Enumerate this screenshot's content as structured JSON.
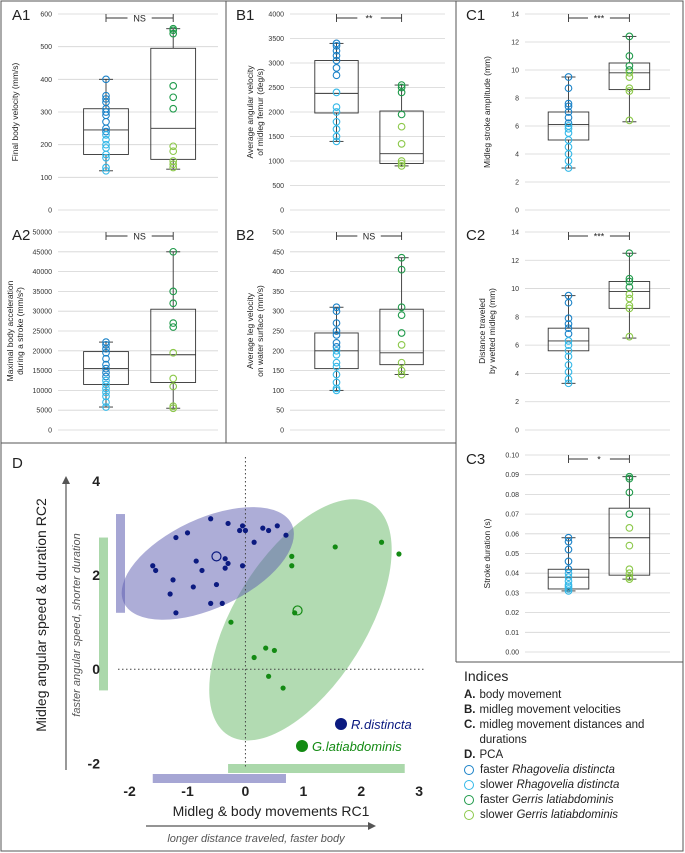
{
  "colors": {
    "faster_rhago": "#1a82c8",
    "slower_rhago": "#33b8e8",
    "faster_gerris": "#1f9a4a",
    "slower_gerris": "#8cc84a",
    "rhago_pca": "#0b1a80",
    "gerris_pca": "#138a13",
    "rhago_ellipse": "#5c5cb0",
    "gerris_ellipse": "#66b866"
  },
  "indices": {
    "title": "Indices",
    "items": [
      {
        "key": "A.",
        "text": "body movement"
      },
      {
        "key": "B.",
        "text": "midleg movement velocities"
      },
      {
        "key": "C.",
        "text": "midleg movement distances and durations"
      },
      {
        "key": "D.",
        "text": "PCA"
      }
    ],
    "legend": [
      {
        "prefix": "faster ",
        "species": "Rhagovelia distincta",
        "color": "#1a82c8"
      },
      {
        "prefix": "slower ",
        "species": "Rhagovelia distincta",
        "color": "#33b8e8"
      },
      {
        "prefix": "faster ",
        "species": "Gerris latiabdominis",
        "color": "#1f9a4a"
      },
      {
        "prefix": "slower ",
        "species": "Gerris latiabdominis",
        "color": "#8cc84a"
      }
    ]
  },
  "chart_data": [
    {
      "id": "A1",
      "type": "box",
      "ylabel": [
        "Final body velocity (mm/s)"
      ],
      "ylim": [
        0,
        600
      ],
      "yticks": [
        0,
        100,
        200,
        300,
        400,
        500,
        600
      ],
      "significance": "NS",
      "groups": [
        {
          "name": "Rhagovelia distincta",
          "min": 120,
          "q1": 170,
          "median": 245,
          "q3": 310,
          "max": 400,
          "faster": [
            400,
            350,
            340,
            330,
            310,
            300,
            290,
            270,
            250,
            240
          ],
          "slower": [
            230,
            215,
            200,
            190,
            170,
            160,
            130,
            120
          ]
        },
        {
          "name": "Gerris latiabdominis",
          "min": 125,
          "q1": 155,
          "median": 250,
          "q3": 495,
          "max": 555,
          "faster": [
            555,
            550,
            540,
            380,
            345,
            310
          ],
          "slower": [
            195,
            180,
            150,
            140,
            130
          ]
        }
      ]
    },
    {
      "id": "A2",
      "type": "box",
      "ylabel": [
        "Maximal body acceleration",
        "during a stroke (mm/s²)"
      ],
      "ylim": [
        0,
        50000
      ],
      "yticks": [
        0,
        5000,
        10000,
        15000,
        20000,
        25000,
        30000,
        35000,
        40000,
        45000,
        50000
      ],
      "significance": "NS",
      "groups": [
        {
          "name": "Rhagovelia distincta",
          "min": 5800,
          "q1": 11500,
          "median": 15500,
          "q3": 19800,
          "max": 22200,
          "faster": [
            22200,
            21500,
            20500,
            19500,
            18000,
            16500,
            15500,
            14500,
            13500
          ],
          "slower": [
            12500,
            11500,
            10500,
            9500,
            8500,
            7000,
            5800
          ]
        },
        {
          "name": "Gerris latiabdominis",
          "min": 5500,
          "q1": 12000,
          "median": 19000,
          "q3": 30500,
          "max": 45000,
          "faster": [
            45000,
            35000,
            32000,
            27000,
            26000
          ],
          "slower": [
            19500,
            13000,
            11000,
            6000,
            5500
          ]
        }
      ]
    },
    {
      "id": "B1",
      "type": "box",
      "ylabel": [
        "Average angular velocity",
        "of midleg femur (deg/s)"
      ],
      "ylim": [
        0,
        4000
      ],
      "yticks": [
        0,
        500,
        1000,
        1500,
        2000,
        2500,
        3000,
        3500,
        4000
      ],
      "significance": "**",
      "groups": [
        {
          "name": "Rhagovelia distincta",
          "min": 1400,
          "q1": 1980,
          "median": 2380,
          "q3": 3050,
          "max": 3400,
          "faster": [
            3400,
            3350,
            3250,
            3150,
            3050,
            2900,
            2750
          ],
          "slower": [
            2400,
            2100,
            2000,
            1800,
            1650,
            1500,
            1400
          ]
        },
        {
          "name": "Gerris latiabdominis",
          "min": 900,
          "q1": 950,
          "median": 1150,
          "q3": 2020,
          "max": 2550,
          "faster": [
            2550,
            2500,
            2400,
            1950
          ],
          "slower": [
            1700,
            1350,
            1000,
            950,
            900
          ]
        }
      ]
    },
    {
      "id": "B2",
      "type": "box",
      "ylabel": [
        "Average leg velocity",
        "on water surface (mm/s)"
      ],
      "ylim": [
        0,
        500
      ],
      "yticks": [
        0,
        50,
        100,
        150,
        200,
        250,
        300,
        350,
        400,
        450,
        500
      ],
      "significance": "NS",
      "groups": [
        {
          "name": "Rhagovelia distincta",
          "min": 100,
          "q1": 155,
          "median": 200,
          "q3": 245,
          "max": 310,
          "faster": [
            310,
            300,
            270,
            250,
            240,
            220,
            210
          ],
          "slower": [
            200,
            190,
            170,
            160,
            140,
            120,
            105,
            100
          ]
        },
        {
          "name": "Gerris latiabdominis",
          "min": 140,
          "q1": 165,
          "median": 195,
          "q3": 305,
          "max": 435,
          "faster": [
            435,
            405,
            310,
            290,
            245
          ],
          "slower": [
            215,
            170,
            150,
            140
          ]
        }
      ]
    },
    {
      "id": "C1",
      "type": "box",
      "ylabel": [
        "Midleg stroke amplitude (mm)"
      ],
      "ylim": [
        0,
        14
      ],
      "yticks": [
        0,
        2,
        4,
        6,
        8,
        10,
        12,
        14
      ],
      "significance": "***",
      "groups": [
        {
          "name": "Rhagovelia distincta",
          "min": 3.0,
          "q1": 5.0,
          "median": 6.1,
          "q3": 7.0,
          "max": 9.5,
          "faster": [
            9.5,
            8.7,
            7.6,
            7.4,
            7.0,
            6.6,
            6.2
          ],
          "slower": [
            6.0,
            5.8,
            5.5,
            5.0,
            4.5,
            4.0,
            3.5,
            3.0
          ]
        },
        {
          "name": "Gerris latiabdominis",
          "min": 6.3,
          "q1": 8.6,
          "median": 9.8,
          "q3": 10.5,
          "max": 12.4,
          "faster": [
            12.4,
            11.0,
            10.3,
            10.0
          ],
          "slower": [
            9.8,
            9.5,
            8.7,
            8.5,
            6.4
          ]
        }
      ]
    },
    {
      "id": "C2",
      "type": "box",
      "ylabel": [
        "Distance traveled",
        "by wetted midleg (mm)"
      ],
      "ylim": [
        0,
        14
      ],
      "yticks": [
        0,
        2,
        4,
        6,
        8,
        10,
        12,
        14
      ],
      "significance": "***",
      "groups": [
        {
          "name": "Rhagovelia distincta",
          "min": 3.3,
          "q1": 5.6,
          "median": 6.3,
          "q3": 7.2,
          "max": 9.5,
          "faster": [
            9.5,
            9.0,
            7.9,
            7.5,
            7.2,
            6.8
          ],
          "slower": [
            6.3,
            6.0,
            5.6,
            5.2,
            4.6,
            4.1,
            3.6,
            3.3
          ]
        },
        {
          "name": "Gerris latiabdominis",
          "min": 6.5,
          "q1": 8.6,
          "median": 9.8,
          "q3": 10.5,
          "max": 12.5,
          "faster": [
            12.5,
            10.7,
            10.5,
            10.1
          ],
          "slower": [
            9.6,
            9.3,
            8.8,
            8.6,
            6.6
          ]
        }
      ]
    },
    {
      "id": "C3",
      "type": "box",
      "ylabel": [
        "Stroke duration (s)"
      ],
      "ylim": [
        0,
        0.1
      ],
      "yticks": [
        0.0,
        0.01,
        0.02,
        0.03,
        0.04,
        0.05,
        0.06,
        0.07,
        0.08,
        0.09,
        0.1
      ],
      "ytick_decimals": 2,
      "significance": "*",
      "groups": [
        {
          "name": "Rhagovelia distincta",
          "min": 0.031,
          "q1": 0.032,
          "median": 0.038,
          "q3": 0.042,
          "max": 0.058,
          "faster": [
            0.058,
            0.056,
            0.052,
            0.046,
            0.042
          ],
          "slower": [
            0.04,
            0.038,
            0.036,
            0.034,
            0.033,
            0.032,
            0.031
          ]
        },
        {
          "name": "Gerris latiabdominis",
          "min": 0.037,
          "q1": 0.039,
          "median": 0.058,
          "q3": 0.073,
          "max": 0.089,
          "faster": [
            0.089,
            0.088,
            0.081,
            0.07
          ],
          "slower": [
            0.063,
            0.054,
            0.042,
            0.04,
            0.038,
            0.037
          ]
        }
      ]
    },
    {
      "id": "D",
      "type": "scatter",
      "xlabel": "Midleg & body movements RC1",
      "xlabel_sub": "longer distance traveled, faster body",
      "ylabel": "Midleg angular speed & duration RC2",
      "ylabel_sub": "faster angular speed, shorter duration",
      "xlim": [
        -2.2,
        3.1
      ],
      "ylim": [
        -2.1,
        4.3
      ],
      "xticks": [
        -2,
        -1,
        0,
        1,
        2,
        3
      ],
      "yticks": [
        -2,
        0,
        2,
        4
      ],
      "series": [
        {
          "name": "R.distincta",
          "points": [
            [
              -0.6,
              3.2
            ],
            [
              -0.3,
              3.1
            ],
            [
              -0.05,
              3.05
            ],
            [
              0.0,
              2.95
            ],
            [
              0.15,
              2.7
            ],
            [
              0.3,
              3.0
            ],
            [
              0.55,
              3.05
            ],
            [
              0.7,
              2.85
            ],
            [
              -1.0,
              2.9
            ],
            [
              -1.2,
              2.8
            ],
            [
              -1.6,
              2.2
            ],
            [
              -1.55,
              2.1
            ],
            [
              -1.25,
              1.9
            ],
            [
              -0.85,
              2.3
            ],
            [
              -0.75,
              2.1
            ],
            [
              -0.35,
              2.35
            ],
            [
              -0.3,
              2.25
            ],
            [
              -0.5,
              1.8
            ],
            [
              -0.35,
              2.15
            ],
            [
              -0.4,
              1.4
            ],
            [
              -0.9,
              1.75
            ],
            [
              -1.3,
              1.6
            ],
            [
              -1.2,
              1.2
            ],
            [
              -0.6,
              1.4
            ],
            [
              -0.05,
              2.2
            ],
            [
              -0.1,
              2.95
            ],
            [
              0.4,
              2.95
            ]
          ],
          "centroid": [
            -0.5,
            2.4
          ],
          "ellipse": {
            "center": [
              -0.65,
              2.25
            ],
            "rx": 1.6,
            "ry": 0.95,
            "angle_deg": 25
          }
        },
        {
          "name": "G.latiabdominis",
          "points": [
            [
              0.8,
              2.4
            ],
            [
              0.8,
              2.2
            ],
            [
              1.55,
              2.6
            ],
            [
              2.35,
              2.7
            ],
            [
              2.65,
              2.45
            ],
            [
              0.85,
              1.2
            ],
            [
              -0.25,
              1.0
            ],
            [
              0.15,
              0.25
            ],
            [
              0.35,
              0.45
            ],
            [
              0.5,
              0.4
            ],
            [
              0.4,
              -0.15
            ],
            [
              0.65,
              -0.4
            ]
          ],
          "centroid": [
            0.9,
            1.25
          ],
          "ellipse": {
            "center": [
              0.95,
              1.05
            ],
            "rx": 2.35,
            "ry": 1.4,
            "angle_deg": 58
          }
        }
      ],
      "marginal_bars": {
        "y_rhago": [
          1.2,
          3.3
        ],
        "y_gerris": [
          -0.45,
          2.8
        ],
        "x_rhago": [
          -1.6,
          0.7
        ],
        "x_gerris": [
          -0.3,
          2.75
        ]
      }
    }
  ]
}
